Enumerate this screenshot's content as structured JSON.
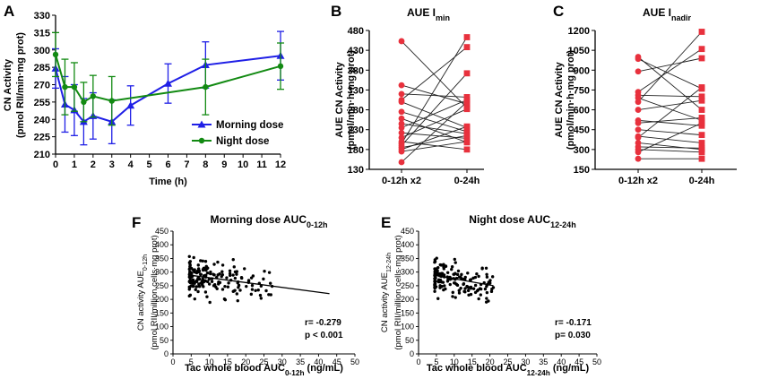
{
  "colors": {
    "morning": "#1f1fe6",
    "night": "#128a12",
    "paired": "#e8313d",
    "ink": "#000000"
  },
  "chart_data": [
    {
      "id": "A",
      "type": "line",
      "panel_label": "A",
      "xlabel": "Time (h)",
      "ylabel_line1": "CN Activity",
      "ylabel_line2": "(pmol RII/min·mg prot)",
      "xlim": [
        0,
        12
      ],
      "ylim": [
        210,
        330
      ],
      "xticks": [
        0,
        1,
        2,
        3,
        4,
        5,
        6,
        7,
        8,
        9,
        10,
        11,
        12
      ],
      "yticks": [
        210,
        225,
        240,
        255,
        270,
        285,
        300,
        315,
        330
      ],
      "series": [
        {
          "name": "Morning dose",
          "color_key": "morning",
          "marker": "triangle",
          "x": [
            0,
            0.5,
            1,
            1.5,
            2,
            3,
            4,
            6,
            8,
            12
          ],
          "y": [
            284,
            253,
            248,
            238,
            243,
            238,
            252,
            271,
            287,
            295
          ],
          "err": [
            17,
            24,
            22,
            20,
            20,
            19,
            17,
            17,
            20,
            21
          ]
        },
        {
          "name": "Night dose",
          "color_key": "night",
          "marker": "circle",
          "x": [
            0,
            0.5,
            1,
            1.5,
            2,
            3,
            8,
            12
          ],
          "y": [
            296,
            268,
            268,
            255,
            260,
            256,
            268,
            286
          ],
          "err": [
            19,
            24,
            21,
            17,
            18,
            21,
            24,
            20
          ]
        }
      ]
    },
    {
      "id": "B",
      "type": "paired",
      "panel_label": "B",
      "title": "AUE I",
      "title_sub": "min",
      "ylabel_line1": "AUE CN Activity",
      "ylabel_line2": "(pmol/min·h·mg prot)",
      "ylim": [
        130,
        480
      ],
      "yticks": [
        130,
        180,
        230,
        280,
        330,
        380,
        430,
        480
      ],
      "categories": [
        "0-12h x2",
        "0-24h"
      ],
      "pairs": [
        [
          453,
          285
        ],
        [
          342,
          295
        ],
        [
          320,
          312
        ],
        [
          305,
          438
        ],
        [
          300,
          235
        ],
        [
          275,
          225
        ],
        [
          258,
          198
        ],
        [
          245,
          220
        ],
        [
          235,
          305
        ],
        [
          222,
          208
        ],
        [
          210,
          282
        ],
        [
          200,
          180
        ],
        [
          195,
          463
        ],
        [
          185,
          215
        ],
        [
          180,
          238
        ],
        [
          175,
          200
        ],
        [
          148,
          300
        ],
        [
          190,
          372
        ]
      ]
    },
    {
      "id": "C",
      "type": "paired",
      "panel_label": "C",
      "title": "AUE I",
      "title_sub": "nadir",
      "ylabel_line1": "AUE CN Activity",
      "ylabel_line2": "(pmol/min·h·mg prot)",
      "ylim": [
        150,
        1200
      ],
      "yticks": [
        150,
        300,
        450,
        600,
        750,
        900,
        1050,
        1200
      ],
      "categories": [
        "0-12h x2",
        "0-24h"
      ],
      "pairs": [
        [
          1000,
          600
        ],
        [
          985,
          760
        ],
        [
          890,
          990
        ],
        [
          735,
          1060
        ],
        [
          710,
          700
        ],
        [
          690,
          520
        ],
        [
          660,
          1190
        ],
        [
          600,
          670
        ],
        [
          520,
          480
        ],
        [
          500,
          540
        ],
        [
          450,
          410
        ],
        [
          400,
          350
        ],
        [
          390,
          770
        ],
        [
          350,
          300
        ],
        [
          320,
          310
        ],
        [
          300,
          280
        ],
        [
          230,
          230
        ],
        [
          280,
          500
        ]
      ]
    },
    {
      "id": "F",
      "type": "scatter",
      "panel_label": "F",
      "title": "Morning dose AUC",
      "title_sub": "0-12h",
      "ylabel_line1": "CN activity AUE",
      "ylabel_sub": "0-12h",
      "ylabel_line2": "(pmol RII/million cells·mg prot)",
      "xlabel": "Tac whole blood AUC",
      "xlabel_sub": "0-12h",
      "xlabel_suffix": " (ng/mL)",
      "xlim": [
        0,
        50
      ],
      "ylim": [
        0,
        450
      ],
      "xticks": [
        0,
        5,
        10,
        15,
        20,
        25,
        30,
        35,
        40,
        45,
        50
      ],
      "yticks": [
        0,
        50,
        100,
        150,
        200,
        250,
        300,
        350,
        400,
        450
      ],
      "stat1": "r= -0.279",
      "stat2": "p < 0.001",
      "fit": {
        "x": [
          5,
          43
        ],
        "y": [
          288,
          221
        ]
      },
      "points": {
        "n": 180,
        "seed": 11,
        "xmin": 4.5,
        "xmax": 28,
        "ymin": 170,
        "ymax": 395
      }
    },
    {
      "id": "E",
      "type": "scatter",
      "panel_label": "E",
      "title": "Night dose AUC",
      "title_sub": "12-24h",
      "ylabel_line1": "CN activity AUE",
      "ylabel_sub": "12-24h",
      "ylabel_line2": "(pmol RII/million cells·mg prot)",
      "xlabel": "Tac whole blood AUC",
      "xlabel_sub": "12-24h",
      "xlabel_suffix": " (ng/mL)",
      "xlim": [
        0,
        50
      ],
      "ylim": [
        0,
        450
      ],
      "xticks": [
        0,
        5,
        10,
        15,
        20,
        25,
        30,
        35,
        40,
        45,
        50
      ],
      "yticks": [
        0,
        50,
        100,
        150,
        200,
        250,
        300,
        350,
        400,
        450
      ],
      "stat1": "r= -0.171",
      "stat2": "p= 0.030",
      "fit": {
        "x": [
          5,
          21
        ],
        "y": [
          287,
          250
        ]
      },
      "points": {
        "n": 150,
        "seed": 23,
        "xmin": 4.5,
        "xmax": 21,
        "ymin": 175,
        "ymax": 385
      }
    }
  ]
}
